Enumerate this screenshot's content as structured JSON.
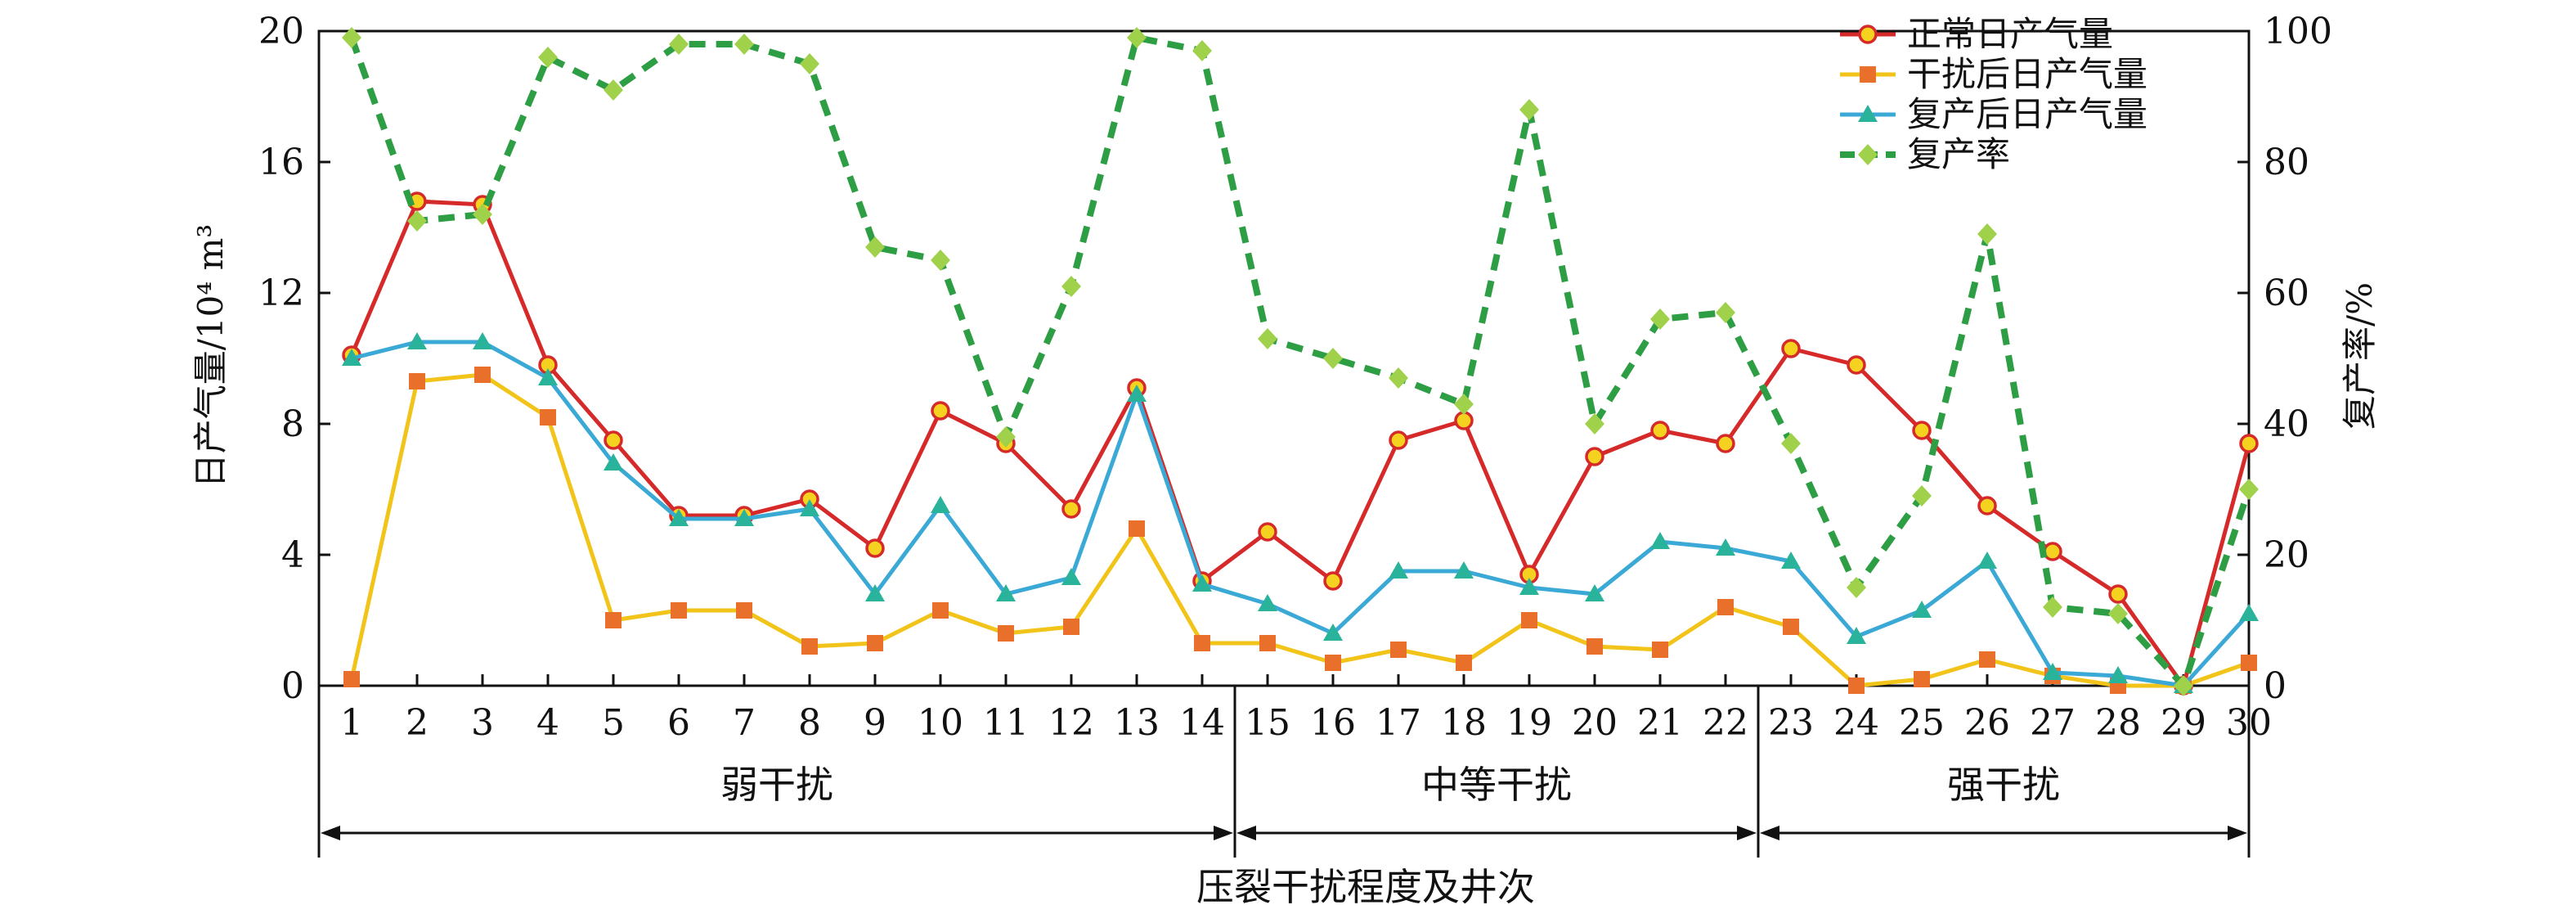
{
  "chart_data": {
    "type": "line",
    "xlabel": "压裂干扰程度及井次",
    "ylabel_left": "日产气量/10⁴ m³",
    "ylabel_right": "复产率/%",
    "x": [
      1,
      2,
      3,
      4,
      5,
      6,
      7,
      8,
      9,
      10,
      11,
      12,
      13,
      14,
      15,
      16,
      17,
      18,
      19,
      20,
      21,
      22,
      23,
      24,
      25,
      26,
      27,
      28,
      29,
      30
    ],
    "ylim_left": [
      0,
      20
    ],
    "yticks_left": [
      0,
      4,
      8,
      12,
      16,
      20
    ],
    "ylim_right": [
      0,
      100
    ],
    "yticks_right": [
      0,
      20,
      40,
      60,
      80,
      100
    ],
    "grid": false,
    "legend_position": "top-right",
    "groups": [
      {
        "label": "弱干扰",
        "start": 1,
        "end": 14
      },
      {
        "label": "中等干扰",
        "start": 15,
        "end": 22
      },
      {
        "label": "强干扰",
        "start": 23,
        "end": 30
      }
    ],
    "series": [
      {
        "name": "正常日产气量",
        "axis": "left",
        "color": "#d62a2a",
        "marker": "circle",
        "marker_fill": "#f5d21f",
        "dashed": false,
        "values": [
          10.1,
          14.8,
          14.7,
          9.8,
          7.5,
          5.2,
          5.2,
          5.7,
          4.2,
          8.4,
          7.4,
          5.4,
          9.1,
          3.2,
          4.7,
          3.2,
          7.5,
          8.1,
          3.4,
          7.0,
          7.8,
          7.4,
          10.3,
          9.8,
          7.8,
          5.5,
          4.1,
          2.8,
          0.0,
          7.4
        ]
      },
      {
        "name": "干扰后日产气量",
        "axis": "left",
        "color": "#f2c318",
        "marker": "square",
        "marker_fill": "#e8702a",
        "dashed": false,
        "values": [
          0.2,
          9.3,
          9.5,
          8.2,
          2.0,
          2.3,
          2.3,
          1.2,
          1.3,
          2.3,
          1.6,
          1.8,
          4.8,
          1.3,
          1.3,
          0.7,
          1.1,
          0.7,
          2.0,
          1.2,
          1.1,
          2.4,
          1.8,
          0.0,
          0.2,
          0.8,
          0.3,
          0.0,
          0.0,
          0.7
        ]
      },
      {
        "name": "复产后日产气量",
        "axis": "left",
        "color": "#3aa9d6",
        "marker": "triangle",
        "marker_fill": "#29b39b",
        "dashed": false,
        "values": [
          10.0,
          10.5,
          10.5,
          9.4,
          6.8,
          5.1,
          5.1,
          5.4,
          2.8,
          5.5,
          2.8,
          3.3,
          8.9,
          3.1,
          2.5,
          1.6,
          3.5,
          3.5,
          3.0,
          2.8,
          4.4,
          4.2,
          3.8,
          1.5,
          2.3,
          3.8,
          0.4,
          0.3,
          0.0,
          2.2
        ]
      },
      {
        "name": "复产率",
        "axis": "right",
        "color": "#2e9e45",
        "marker": "diamond",
        "marker_fill": "#9fd24a",
        "dashed": true,
        "values": [
          99,
          71,
          72,
          96,
          91,
          98,
          98,
          95,
          67,
          65,
          38,
          61,
          99,
          97,
          53,
          50,
          47,
          43,
          88,
          40,
          56,
          57,
          37,
          15,
          29,
          69,
          12,
          11,
          0,
          30
        ]
      }
    ]
  }
}
